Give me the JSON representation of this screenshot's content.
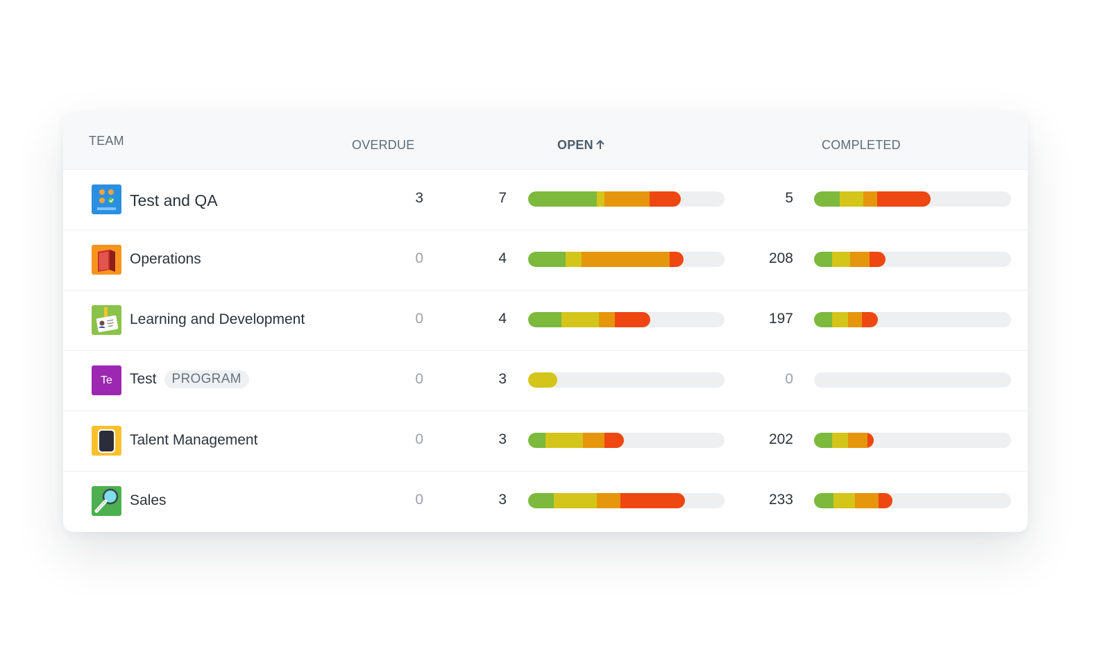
{
  "colors": {
    "green": "#7cb93c",
    "yellow": "#d4c51a",
    "orange": "#e5960c",
    "red": "#ee4712",
    "track": "#eeeff1"
  },
  "header": {
    "team": "TEAM",
    "overdue": "OVERDUE",
    "open": "OPEN",
    "open_sort_icon": "arrow-up-icon",
    "completed": "COMPLETED"
  },
  "rows": [
    {
      "name": "Test and QA",
      "icon": "teamretro-board-icon",
      "badge": "",
      "overdue": "3",
      "overdue_muted": false,
      "open": "7",
      "completed": "5",
      "open_bar": [
        0.35,
        0.04,
        0.23,
        0.16
      ],
      "completed_bar": [
        0.13,
        0.12,
        0.07,
        0.27
      ]
    },
    {
      "name": "Operations",
      "icon": "book-icon",
      "badge": "",
      "overdue": "0",
      "overdue_muted": true,
      "open": "4",
      "completed": "208",
      "open_bar": [
        0.19,
        0.08,
        0.45,
        0.07
      ],
      "completed_bar": [
        0.09,
        0.09,
        0.1,
        0.08
      ]
    },
    {
      "name": "Learning and Development",
      "icon": "id-badge-icon",
      "badge": "",
      "overdue": "0",
      "overdue_muted": true,
      "open": "4",
      "completed": "197",
      "open_bar": [
        0.17,
        0.19,
        0.08,
        0.18
      ],
      "completed_bar": [
        0.09,
        0.08,
        0.07,
        0.08
      ]
    },
    {
      "name": "Test",
      "icon": "Te",
      "badge": "PROGRAM",
      "overdue": "0",
      "overdue_muted": true,
      "open": "3",
      "completed": "0",
      "open_bar": [
        0.0,
        0.15,
        0.0,
        0.0
      ],
      "completed_bar": [
        0.0,
        0.0,
        0.0,
        0.0
      ]
    },
    {
      "name": "Talent Management",
      "icon": "phone-icon",
      "badge": "",
      "overdue": "0",
      "overdue_muted": true,
      "open": "3",
      "completed": "202",
      "open_bar": [
        0.09,
        0.19,
        0.11,
        0.1
      ],
      "completed_bar": [
        0.09,
        0.08,
        0.1,
        0.03
      ]
    },
    {
      "name": "Sales",
      "icon": "magnifier-icon",
      "badge": "",
      "overdue": "0",
      "overdue_muted": true,
      "open": "3",
      "completed": "233",
      "open_bar": [
        0.13,
        0.22,
        0.12,
        0.33
      ],
      "completed_bar": [
        0.1,
        0.11,
        0.12,
        0.07
      ]
    }
  ]
}
